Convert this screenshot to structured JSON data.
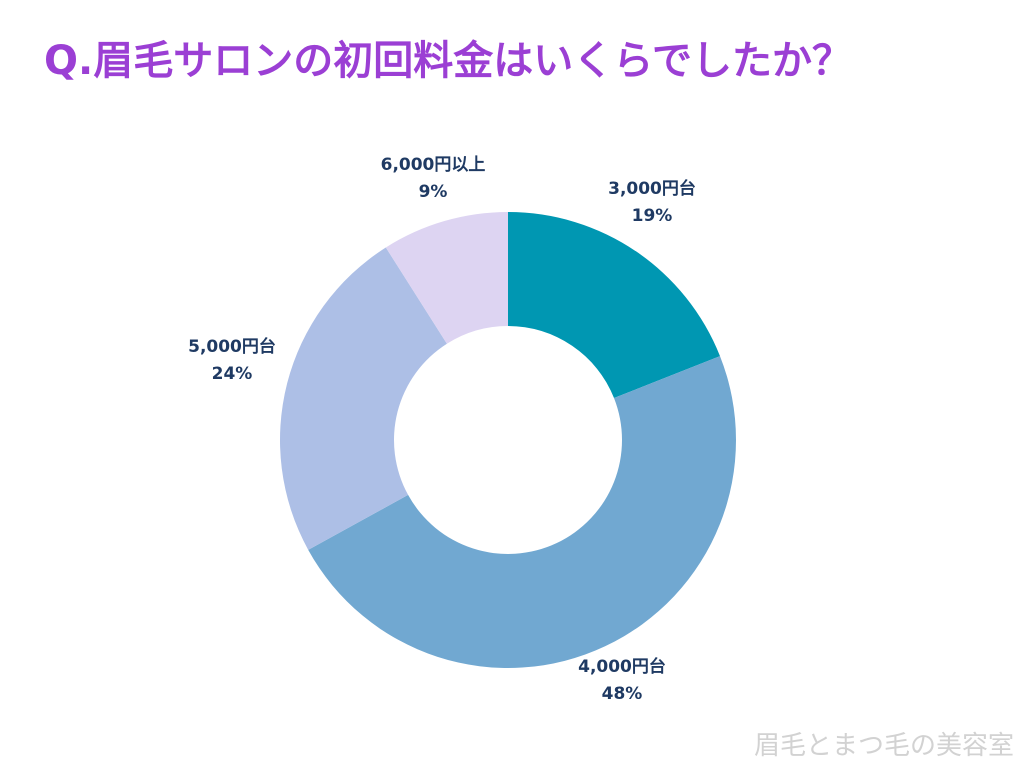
{
  "chart_data": {
    "type": "pie",
    "style": "donut",
    "title": "Q.眉毛サロンの初回料金はいくらでしたか？",
    "categories": [
      "3,000円台",
      "4,000円台",
      "5,000円台",
      "6,000円以上"
    ],
    "values": [
      19,
      48,
      24,
      9
    ],
    "value_labels": [
      "19%",
      "48%",
      "24%",
      "9%"
    ],
    "colors": [
      "#0097b2",
      "#71a8d1",
      "#adbfe6",
      "#ddd4f2"
    ],
    "label_color": "#1f3a63",
    "start": "12 o'clock",
    "direction": "clockwise"
  },
  "watermark": "眉毛とまつ毛の美容室",
  "title_color": "#9b3fd4"
}
